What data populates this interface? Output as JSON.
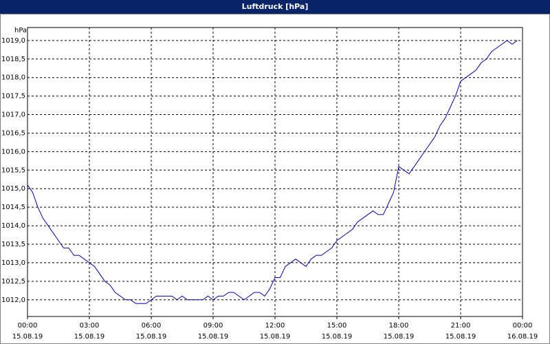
{
  "chart_data": {
    "type": "line",
    "title": "Luftdruck [hPa]",
    "y_unit": "hPa",
    "x": [
      0,
      0.25,
      0.5,
      0.75,
      1,
      1.25,
      1.5,
      1.75,
      2,
      2.25,
      2.5,
      2.75,
      3,
      3.25,
      3.5,
      3.75,
      4,
      4.25,
      4.5,
      4.75,
      5,
      5.25,
      5.5,
      5.75,
      6,
      6.25,
      6.5,
      6.75,
      7,
      7.25,
      7.5,
      7.75,
      8,
      8.25,
      8.5,
      8.75,
      9,
      9.25,
      9.5,
      9.75,
      10,
      10.25,
      10.5,
      10.75,
      11,
      11.25,
      11.5,
      11.75,
      12,
      12.25,
      12.5,
      12.75,
      13,
      13.25,
      13.5,
      13.75,
      14,
      14.25,
      14.5,
      14.75,
      15,
      15.25,
      15.5,
      15.75,
      16,
      16.25,
      16.5,
      16.75,
      17,
      17.25,
      17.5,
      17.75,
      18,
      18.25,
      18.5,
      18.75,
      19,
      19.25,
      19.5,
      19.75,
      20,
      20.25,
      20.5,
      20.75,
      21,
      21.25,
      21.5,
      21.75,
      22,
      22.25,
      22.5,
      22.75,
      23,
      23.25,
      23.5,
      23.75
    ],
    "series": [
      {
        "name": "Luftdruck",
        "color": "#0000a8",
        "values": [
          1015.1,
          1014.9,
          1014.5,
          1014.2,
          1014.0,
          1013.8,
          1013.6,
          1013.4,
          1013.4,
          1013.2,
          1013.2,
          1013.1,
          1013.0,
          1012.9,
          1012.7,
          1012.5,
          1012.4,
          1012.2,
          1012.1,
          1012.0,
          1012.0,
          1011.9,
          1011.9,
          1011.9,
          1012.0,
          1012.1,
          1012.1,
          1012.1,
          1012.1,
          1012.0,
          1012.1,
          1012.0,
          1012.0,
          1012.0,
          1012.0,
          1012.1,
          1012.0,
          1012.1,
          1012.1,
          1012.2,
          1012.2,
          1012.1,
          1012.0,
          1012.1,
          1012.2,
          1012.2,
          1012.1,
          1012.3,
          1012.6,
          1012.6,
          1012.9,
          1013.0,
          1013.1,
          1013.0,
          1012.9,
          1013.1,
          1013.2,
          1013.2,
          1013.3,
          1013.4,
          1013.6,
          1013.7,
          1013.8,
          1013.9,
          1014.1,
          1014.2,
          1014.3,
          1014.4,
          1014.3,
          1014.3,
          1014.6,
          1014.9,
          1015.6,
          1015.5,
          1015.4,
          1015.6,
          1015.8,
          1016.0,
          1016.2,
          1016.4,
          1016.7,
          1016.9,
          1017.2,
          1017.5,
          1017.9,
          1018.0,
          1018.1,
          1018.2,
          1018.4,
          1018.5,
          1018.7,
          1018.8,
          1018.9,
          1019.0,
          1018.9,
          1019.0
        ]
      }
    ],
    "xlim": [
      0,
      24
    ],
    "xticks": [
      {
        "value": 0,
        "label": "00:00"
      },
      {
        "value": 3,
        "label": "03:00"
      },
      {
        "value": 6,
        "label": "06:00"
      },
      {
        "value": 9,
        "label": "09:00"
      },
      {
        "value": 12,
        "label": "12:00"
      },
      {
        "value": 15,
        "label": "15:00"
      },
      {
        "value": 18,
        "label": "18:00"
      },
      {
        "value": 21,
        "label": "21:00"
      },
      {
        "value": 24,
        "label": "00:00"
      }
    ],
    "xtick_dates": [
      "15.08.19",
      "15.08.19",
      "15.08.19",
      "15.08.19",
      "15.08.19",
      "15.08.19",
      "15.08.19",
      "15.08.19",
      "16.08.19"
    ],
    "ylim": [
      1011.55,
      1019.35
    ],
    "yticks": [
      {
        "value": 1012,
        "label": "1012,0"
      },
      {
        "value": 1012.5,
        "label": "1012,5"
      },
      {
        "value": 1013,
        "label": "1013,0"
      },
      {
        "value": 1013.5,
        "label": "1013,5"
      },
      {
        "value": 1014,
        "label": "1014,0"
      },
      {
        "value": 1014.5,
        "label": "1014,5"
      },
      {
        "value": 1015,
        "label": "1015,0"
      },
      {
        "value": 1015.5,
        "label": "1015,5"
      },
      {
        "value": 1016,
        "label": "1016,0"
      },
      {
        "value": 1016.5,
        "label": "1016,5"
      },
      {
        "value": 1017,
        "label": "1017,0"
      },
      {
        "value": 1017.5,
        "label": "1017,5"
      },
      {
        "value": 1018,
        "label": "1018,0"
      },
      {
        "value": 1018.5,
        "label": "1018,5"
      },
      {
        "value": 1019,
        "label": "1019,0"
      }
    ],
    "grid": true
  }
}
